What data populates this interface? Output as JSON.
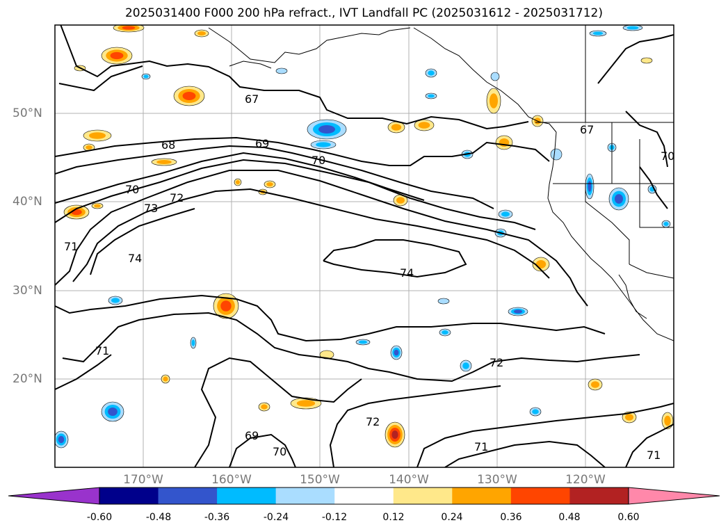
{
  "title": "2025031400 F000 200 hPa refract., IVT Landfall PC (2025031612 - 2025031712)",
  "lat_labels": [
    "50°N",
    "40°N",
    "30°N",
    "20°N"
  ],
  "lon_labels": [
    "170°W",
    "160°W",
    "150°W",
    "140°W",
    "130°W",
    "120°W"
  ],
  "contour_labels": [
    "67",
    "68",
    "69",
    "70",
    "70",
    "71",
    "72",
    "73",
    "74",
    "74",
    "71",
    "72",
    "72",
    "69",
    "70",
    "71",
    "71",
    "67",
    "70"
  ],
  "colorbar": {
    "ticks": [
      "-0.60",
      "-0.48",
      "-0.36",
      "-0.24",
      "-0.12",
      "0.12",
      "0.24",
      "0.36",
      "0.48",
      "0.60"
    ],
    "colors": [
      "#9933cc",
      "#00008b",
      "#3355cc",
      "#00bbff",
      "#aaddff",
      "#ffffff",
      "#ffe88a",
      "#ffa500",
      "#ff4500",
      "#b22222",
      "#ff88aa"
    ]
  },
  "chart_data": {
    "type": "map",
    "title": "2025031400 F000 200 hPa refract., IVT Landfall PC (2025031612 - 2025031712)",
    "x_range": [
      "180°W",
      "110°W"
    ],
    "y_range": [
      "10°N",
      "60°N"
    ],
    "grid": true,
    "contour_field": "200 hPa refractivity",
    "contour_levels": [
      67,
      68,
      69,
      70,
      71,
      72,
      73,
      74
    ],
    "shaded_field": "IVT Landfall PC",
    "shade_levels": [
      -0.6,
      -0.48,
      -0.36,
      -0.24,
      -0.12,
      0.12,
      0.24,
      0.36,
      0.48,
      0.6
    ]
  }
}
